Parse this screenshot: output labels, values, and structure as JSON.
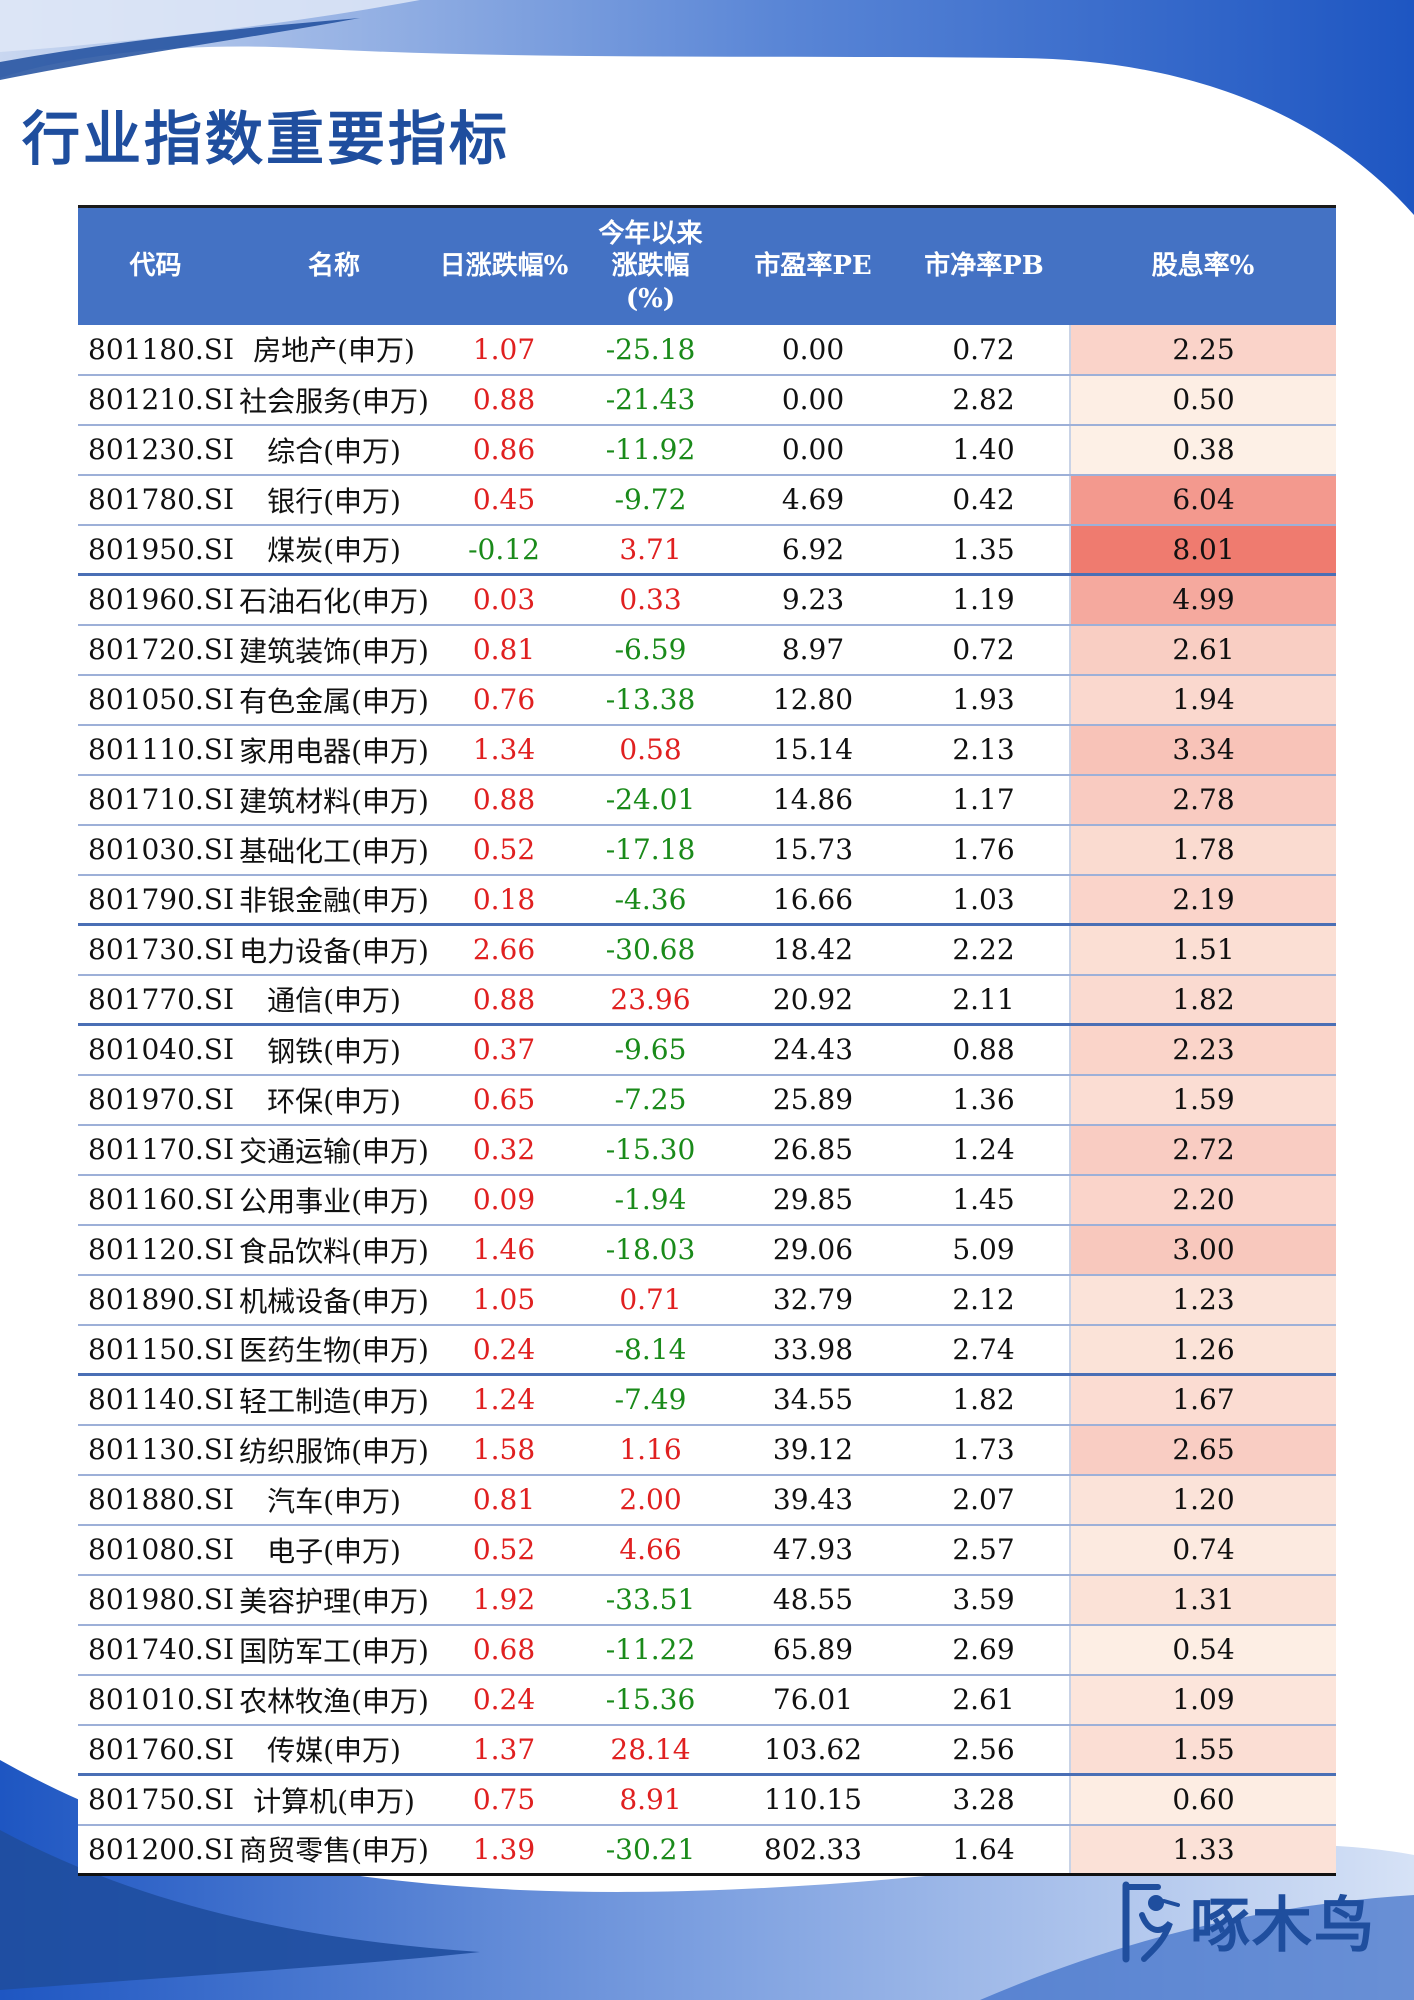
{
  "title": "行业指数重要指标",
  "brand": "啄木鸟",
  "table": {
    "headers": {
      "code": "代码",
      "name": "名称",
      "daily_change": "日涨跌幅%",
      "ytd_change_line1": "今年以来",
      "ytd_change_line2": "涨跌幅",
      "ytd_change_line3": "(%)",
      "pe": "市盈率PE",
      "pb": "市净率PB",
      "dividend": "股息率%"
    },
    "rows": [
      {
        "code": "801180.SI",
        "name": "房地产(申万)",
        "daily": "1.07",
        "ytd": "-25.18",
        "pe": "0.00",
        "pb": "0.72",
        "div": "2.25"
      },
      {
        "code": "801210.SI",
        "name": "社会服务(申万)",
        "daily": "0.88",
        "ytd": "-21.43",
        "pe": "0.00",
        "pb": "2.82",
        "div": "0.50"
      },
      {
        "code": "801230.SI",
        "name": "综合(申万)",
        "daily": "0.86",
        "ytd": "-11.92",
        "pe": "0.00",
        "pb": "1.40",
        "div": "0.38"
      },
      {
        "code": "801780.SI",
        "name": "银行(申万)",
        "daily": "0.45",
        "ytd": "-9.72",
        "pe": "4.69",
        "pb": "0.42",
        "div": "6.04"
      },
      {
        "code": "801950.SI",
        "name": "煤炭(申万)",
        "daily": "-0.12",
        "ytd": "3.71",
        "pe": "6.92",
        "pb": "1.35",
        "div": "8.01"
      },
      {
        "code": "801960.SI",
        "name": "石油石化(申万)",
        "daily": "0.03",
        "ytd": "0.33",
        "pe": "9.23",
        "pb": "1.19",
        "div": "4.99"
      },
      {
        "code": "801720.SI",
        "name": "建筑装饰(申万)",
        "daily": "0.81",
        "ytd": "-6.59",
        "pe": "8.97",
        "pb": "0.72",
        "div": "2.61"
      },
      {
        "code": "801050.SI",
        "name": "有色金属(申万)",
        "daily": "0.76",
        "ytd": "-13.38",
        "pe": "12.80",
        "pb": "1.93",
        "div": "1.94"
      },
      {
        "code": "801110.SI",
        "name": "家用电器(申万)",
        "daily": "1.34",
        "ytd": "0.58",
        "pe": "15.14",
        "pb": "2.13",
        "div": "3.34"
      },
      {
        "code": "801710.SI",
        "name": "建筑材料(申万)",
        "daily": "0.88",
        "ytd": "-24.01",
        "pe": "14.86",
        "pb": "1.17",
        "div": "2.78"
      },
      {
        "code": "801030.SI",
        "name": "基础化工(申万)",
        "daily": "0.52",
        "ytd": "-17.18",
        "pe": "15.73",
        "pb": "1.76",
        "div": "1.78"
      },
      {
        "code": "801790.SI",
        "name": "非银金融(申万)",
        "daily": "0.18",
        "ytd": "-4.36",
        "pe": "16.66",
        "pb": "1.03",
        "div": "2.19"
      },
      {
        "code": "801730.SI",
        "name": "电力设备(申万)",
        "daily": "2.66",
        "ytd": "-30.68",
        "pe": "18.42",
        "pb": "2.22",
        "div": "1.51"
      },
      {
        "code": "801770.SI",
        "name": "通信(申万)",
        "daily": "0.88",
        "ytd": "23.96",
        "pe": "20.92",
        "pb": "2.11",
        "div": "1.82"
      },
      {
        "code": "801040.SI",
        "name": "钢铁(申万)",
        "daily": "0.37",
        "ytd": "-9.65",
        "pe": "24.43",
        "pb": "0.88",
        "div": "2.23"
      },
      {
        "code": "801970.SI",
        "name": "环保(申万)",
        "daily": "0.65",
        "ytd": "-7.25",
        "pe": "25.89",
        "pb": "1.36",
        "div": "1.59"
      },
      {
        "code": "801170.SI",
        "name": "交通运输(申万)",
        "daily": "0.32",
        "ytd": "-15.30",
        "pe": "26.85",
        "pb": "1.24",
        "div": "2.72"
      },
      {
        "code": "801160.SI",
        "name": "公用事业(申万)",
        "daily": "0.09",
        "ytd": "-1.94",
        "pe": "29.85",
        "pb": "1.45",
        "div": "2.20"
      },
      {
        "code": "801120.SI",
        "name": "食品饮料(申万)",
        "daily": "1.46",
        "ytd": "-18.03",
        "pe": "29.06",
        "pb": "5.09",
        "div": "3.00"
      },
      {
        "code": "801890.SI",
        "name": "机械设备(申万)",
        "daily": "1.05",
        "ytd": "0.71",
        "pe": "32.79",
        "pb": "2.12",
        "div": "1.23"
      },
      {
        "code": "801150.SI",
        "name": "医药生物(申万)",
        "daily": "0.24",
        "ytd": "-8.14",
        "pe": "33.98",
        "pb": "2.74",
        "div": "1.26"
      },
      {
        "code": "801140.SI",
        "name": "轻工制造(申万)",
        "daily": "1.24",
        "ytd": "-7.49",
        "pe": "34.55",
        "pb": "1.82",
        "div": "1.67"
      },
      {
        "code": "801130.SI",
        "name": "纺织服饰(申万)",
        "daily": "1.58",
        "ytd": "1.16",
        "pe": "39.12",
        "pb": "1.73",
        "div": "2.65"
      },
      {
        "code": "801880.SI",
        "name": "汽车(申万)",
        "daily": "0.81",
        "ytd": "2.00",
        "pe": "39.43",
        "pb": "2.07",
        "div": "1.20"
      },
      {
        "code": "801080.SI",
        "name": "电子(申万)",
        "daily": "0.52",
        "ytd": "4.66",
        "pe": "47.93",
        "pb": "2.57",
        "div": "0.74"
      },
      {
        "code": "801980.SI",
        "name": "美容护理(申万)",
        "daily": "1.92",
        "ytd": "-33.51",
        "pe": "48.55",
        "pb": "3.59",
        "div": "1.31"
      },
      {
        "code": "801740.SI",
        "name": "国防军工(申万)",
        "daily": "0.68",
        "ytd": "-11.22",
        "pe": "65.89",
        "pb": "2.69",
        "div": "0.54"
      },
      {
        "code": "801010.SI",
        "name": "农林牧渔(申万)",
        "daily": "0.24",
        "ytd": "-15.36",
        "pe": "76.01",
        "pb": "2.61",
        "div": "1.09"
      },
      {
        "code": "801760.SI",
        "name": "传媒(申万)",
        "daily": "1.37",
        "ytd": "28.14",
        "pe": "103.62",
        "pb": "2.56",
        "div": "1.55"
      },
      {
        "code": "801750.SI",
        "name": "计算机(申万)",
        "daily": "0.75",
        "ytd": "8.91",
        "pe": "110.15",
        "pb": "3.28",
        "div": "0.60"
      },
      {
        "code": "801200.SI",
        "name": "商贸零售(申万)",
        "daily": "1.39",
        "ytd": "-30.21",
        "pe": "802.33",
        "pb": "1.64",
        "div": "1.33"
      }
    ]
  },
  "colors": {
    "title": "#1f4e9e",
    "header_bg": "#4472c4",
    "header_text": "#ffffff",
    "positive": "#e02020",
    "negative": "#1a8a1a",
    "dividend_scale_low": "#fdf0e6",
    "dividend_scale_high": "#ef7b6f"
  }
}
